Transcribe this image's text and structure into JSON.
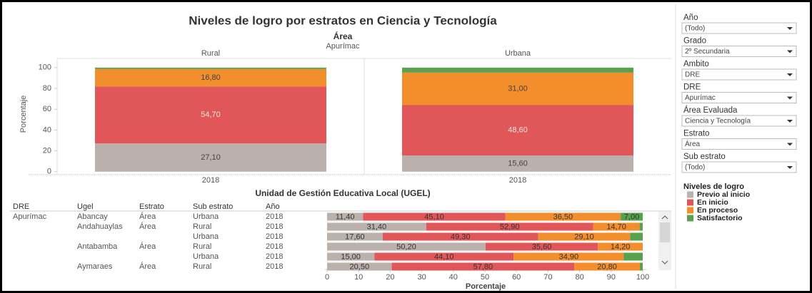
{
  "chart_data": [
    {
      "type": "stacked-bar",
      "title": "Niveles de logro por estratos en Ciencia y Tecnología",
      "facet_title": "Área",
      "facet_subtitle": "Apurímac",
      "categories": [
        "Rural",
        "Urbana"
      ],
      "x_labels": [
        "2018",
        "2018"
      ],
      "ylabel": "Porcentaje",
      "ylim": [
        -1.5,
        104
      ],
      "yticks": [
        0,
        20,
        40,
        60,
        80,
        100
      ],
      "grid": false,
      "legend_title": "Niveles de logro",
      "series": [
        {
          "name": "Previo al inicio",
          "color": "#bab0ac",
          "values": [
            27.1,
            15.6
          ],
          "value_labels": [
            "27,10",
            "15,60"
          ]
        },
        {
          "name": "En inicio",
          "color": "#e15759",
          "values": [
            54.7,
            48.6
          ],
          "value_labels": [
            "54,70",
            "48,60"
          ]
        },
        {
          "name": "En proceso",
          "color": "#f28e2b",
          "values": [
            16.8,
            31.0
          ],
          "value_labels": [
            "16,80",
            "31,00"
          ]
        },
        {
          "name": "Satisfactorio",
          "color": "#59a14f",
          "values": [
            1.4,
            4.8
          ],
          "value_labels": [
            null,
            null
          ]
        }
      ]
    },
    {
      "type": "stacked-barh",
      "title": "Unidad de Gestión Educativa Local (UGEL)",
      "columns": [
        "DRE",
        "Ugel",
        "Estrato",
        "Sub estrato",
        "Año"
      ],
      "rows": [
        [
          "Apurímac",
          "Abancay",
          "Área",
          "Urbana",
          "2018"
        ],
        [
          null,
          "Andahuaylas",
          "Área",
          "Rural",
          "2018"
        ],
        [
          null,
          null,
          null,
          "Urbana",
          "2018"
        ],
        [
          null,
          "Antabamba",
          "Área",
          "Rural",
          "2018"
        ],
        [
          null,
          null,
          null,
          "Urbana",
          "2018"
        ],
        [
          null,
          "Aymaraes",
          "Área",
          "Rural",
          "2018"
        ]
      ],
      "xlabel": "Porcentaje",
      "xlim": [
        0,
        100
      ],
      "xticks": [
        0,
        10,
        20,
        30,
        40,
        50,
        60,
        70,
        80,
        90,
        100
      ],
      "series": [
        {
          "color": "#bab0ac",
          "values": [
            11.4,
            31.4,
            17.6,
            50.2,
            15.0,
            20.5
          ],
          "value_labels": [
            "11,40",
            "31,40",
            "17,60",
            "50,20",
            "15,00",
            "20,50"
          ]
        },
        {
          "color": "#e15759",
          "values": [
            45.1,
            52.9,
            49.3,
            35.6,
            44.1,
            57.8
          ],
          "value_labels": [
            "45,10",
            "52,90",
            "49,30",
            "35,60",
            "44,10",
            "57,80"
          ]
        },
        {
          "color": "#f28e2b",
          "values": [
            36.5,
            14.7,
            29.1,
            14.2,
            34.9,
            20.8
          ],
          "value_labels": [
            "36,50",
            "14,70",
            "29,10",
            "14,20",
            "34,90",
            "20,80"
          ]
        },
        {
          "color": "#59a14f",
          "values": [
            7.0,
            1.0,
            4.0,
            0,
            6.0,
            0.9
          ],
          "value_labels": [
            "7,00",
            null,
            null,
            null,
            null,
            null
          ]
        }
      ]
    }
  ],
  "filters": [
    {
      "label": "Año",
      "value": "(Todo)"
    },
    {
      "label": "Grado",
      "value": "2º Secundaria"
    },
    {
      "label": "Ambito",
      "value": "DRE"
    },
    {
      "label": "DRE",
      "value": "Apurímac"
    },
    {
      "label": "Área Evaluada",
      "value": "Ciencia y Tecnología"
    },
    {
      "label": "Estrato",
      "value": "Área"
    },
    {
      "label": "Sub estrato",
      "value": "(Todo)"
    }
  ]
}
